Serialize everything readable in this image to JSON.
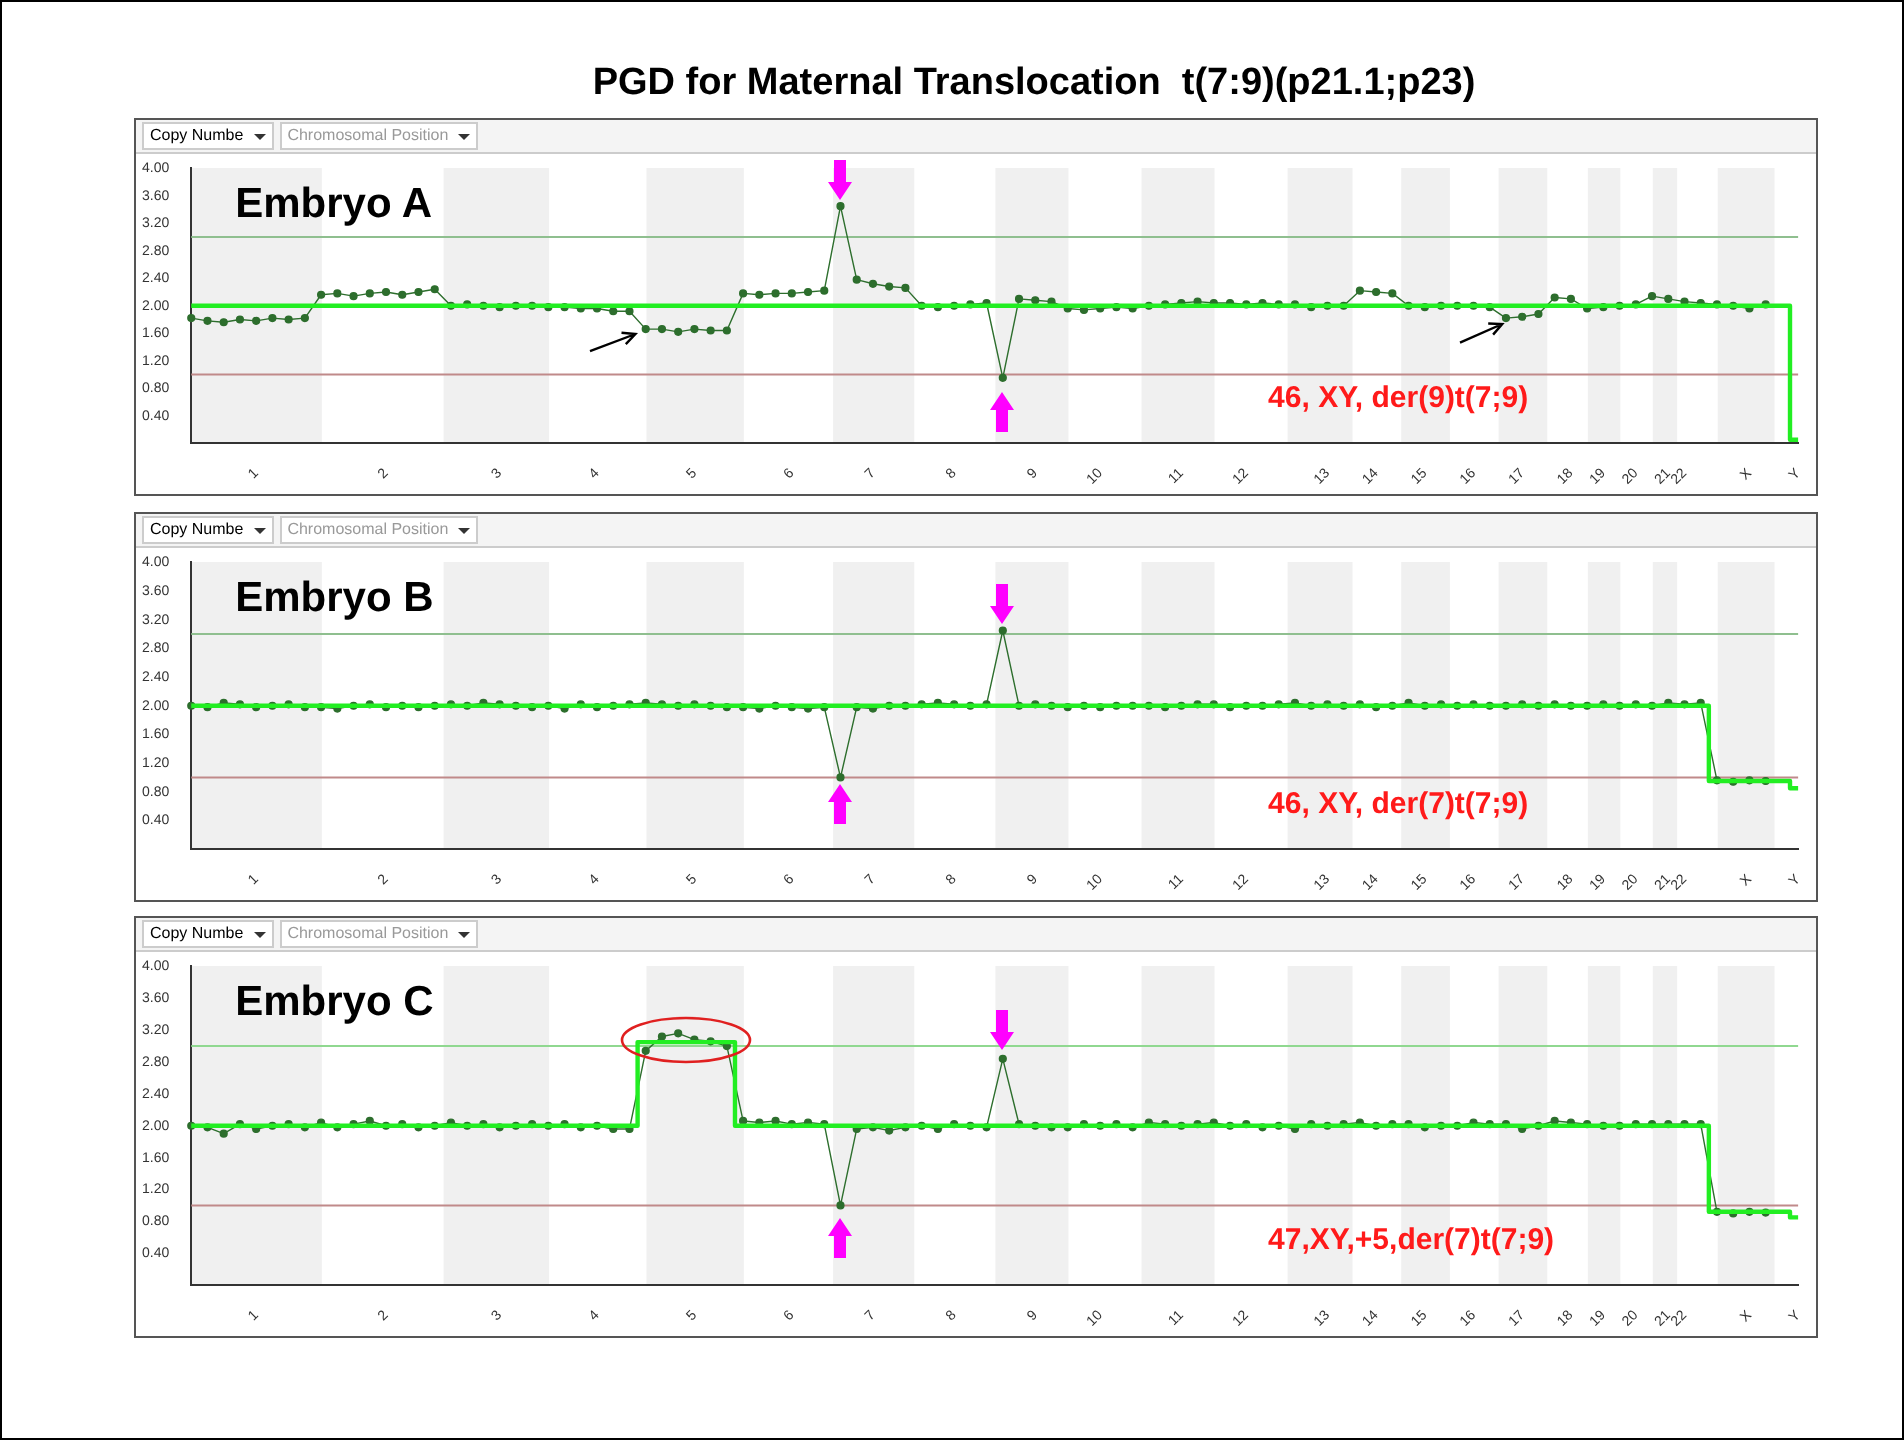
{
  "chart_data": [
    {
      "type": "line",
      "title": "PGD for Maternal Translocation  t(7:9)(p21.1;p23)",
      "subtitle": "Embryo A",
      "annotations": [
        "Copy Numbe",
        "Chromosomal Position",
        "46, XY, der(9)t(7;9)"
      ],
      "categories": [
        null,
        null,
        null,
        null,
        "1",
        null,
        null,
        null,
        null,
        null,
        null,
        null,
        "2",
        null,
        null,
        null,
        null,
        null,
        null,
        "3",
        null,
        null,
        null,
        null,
        null,
        "4",
        null,
        null,
        null,
        null,
        null,
        "5",
        null,
        null,
        null,
        null,
        null,
        "6",
        null,
        null,
        null,
        null,
        "7",
        null,
        null,
        null,
        null,
        "8",
        null,
        null,
        null,
        null,
        "9",
        null,
        null,
        null,
        "10",
        null,
        null,
        null,
        null,
        "11",
        null,
        null,
        null,
        "12",
        null,
        null,
        null,
        null,
        "13",
        null,
        null,
        "14",
        null,
        null,
        "15",
        null,
        null,
        "16",
        null,
        null,
        "17",
        null,
        null,
        "18",
        null,
        "19",
        null,
        "20",
        null,
        "21",
        "22",
        null,
        null,
        null,
        "X",
        null,
        null,
        "Y"
      ],
      "ylim": [
        0,
        4
      ],
      "yticks": [
        {
          "value": 0.4,
          "label": "0.40"
        },
        {
          "value": 0.8,
          "label": "0.80"
        },
        {
          "value": 1.2,
          "label": "1.20"
        },
        {
          "value": 1.6,
          "label": "1.60"
        },
        {
          "value": 2.0,
          "label": "2.00"
        },
        {
          "value": 2.4,
          "label": "2.40"
        },
        {
          "value": 2.8,
          "label": "2.80"
        },
        {
          "value": 3.2,
          "label": "3.20"
        },
        {
          "value": 3.6,
          "label": "3.60"
        },
        {
          "value": 4.0,
          "label": "4.00"
        }
      ],
      "grid": false,
      "legend": false,
      "ref_lines": [
        {
          "axis": "y",
          "value": 3.0,
          "color": "#8fbf8f"
        },
        {
          "axis": "y",
          "value": 1.0,
          "color": "#c08a8a"
        }
      ],
      "series": [
        {
          "type": "line",
          "color": "#2d6e2d",
          "marker": "circle",
          "values": [
            1.82,
            1.78,
            1.76,
            1.8,
            1.78,
            1.82,
            1.8,
            1.82,
            2.16,
            2.18,
            2.14,
            2.18,
            2.2,
            2.16,
            2.2,
            2.24,
            2.0,
            2.02,
            2.0,
            1.98,
            2.0,
            2.0,
            1.98,
            1.98,
            1.96,
            1.96,
            1.92,
            1.92,
            1.66,
            1.66,
            1.62,
            1.66,
            1.64,
            1.64,
            2.18,
            2.16,
            2.18,
            2.18,
            2.2,
            2.22,
            3.45,
            2.38,
            2.32,
            2.28,
            2.26,
            2.0,
            1.98,
            2.0,
            2.02,
            2.04,
            0.95,
            2.1,
            2.08,
            2.06,
            1.96,
            1.94,
            1.96,
            1.98,
            1.96,
            2.0,
            2.02,
            2.04,
            2.06,
            2.04,
            2.04,
            2.02,
            2.04,
            2.02,
            2.02,
            1.98,
            2.0,
            2.0,
            2.22,
            2.2,
            2.18,
            2.0,
            1.98,
            2.0,
            2.0,
            2.0,
            1.98,
            1.82,
            1.84,
            1.88,
            2.12,
            2.1,
            1.96,
            1.98,
            2.0,
            2.02,
            2.14,
            2.1,
            2.06,
            2.04,
            2.02,
            2.0,
            1.96,
            2.02,
            null,
            null
          ]
        },
        {
          "type": "step",
          "color": "#22ee22",
          "marker": "none",
          "values": [
            2.0,
            2.0,
            2.0,
            2.0,
            2.0,
            2.0,
            2.0,
            2.0,
            2.0,
            2.0,
            2.0,
            2.0,
            2.0,
            2.0,
            2.0,
            2.0,
            2.0,
            2.0,
            2.0,
            2.0,
            2.0,
            2.0,
            2.0,
            2.0,
            2.0,
            2.0,
            2.0,
            2.0,
            2.0,
            2.0,
            2.0,
            2.0,
            2.0,
            2.0,
            2.0,
            2.0,
            2.0,
            2.0,
            2.0,
            2.0,
            2.0,
            2.0,
            2.0,
            2.0,
            2.0,
            2.0,
            2.0,
            2.0,
            2.0,
            2.0,
            2.0,
            2.0,
            2.0,
            2.0,
            2.0,
            2.0,
            2.0,
            2.0,
            2.0,
            2.0,
            2.0,
            2.0,
            2.0,
            2.0,
            2.0,
            2.0,
            2.0,
            2.0,
            2.0,
            2.0,
            2.0,
            2.0,
            2.0,
            2.0,
            2.0,
            2.0,
            2.0,
            2.0,
            2.0,
            2.0,
            2.0,
            2.0,
            2.0,
            2.0,
            2.0,
            2.0,
            2.0,
            2.0,
            2.0,
            2.0,
            2.0,
            2.0,
            2.0,
            2.0,
            2.0,
            2.0,
            2.0,
            2.0,
            2.0,
            0.05
          ]
        }
      ]
    },
    {
      "type": "line",
      "subtitle": "Embryo B",
      "annotations": [
        "Copy Numbe",
        "Chromosomal Position",
        "46, XY, der(7)t(7;9)"
      ],
      "categories": [
        null,
        null,
        null,
        null,
        "1",
        null,
        null,
        null,
        null,
        null,
        null,
        null,
        "2",
        null,
        null,
        null,
        null,
        null,
        null,
        "3",
        null,
        null,
        null,
        null,
        null,
        "4",
        null,
        null,
        null,
        null,
        null,
        "5",
        null,
        null,
        null,
        null,
        null,
        "6",
        null,
        null,
        null,
        null,
        "7",
        null,
        null,
        null,
        null,
        "8",
        null,
        null,
        null,
        null,
        "9",
        null,
        null,
        null,
        "10",
        null,
        null,
        null,
        null,
        "11",
        null,
        null,
        null,
        "12",
        null,
        null,
        null,
        null,
        "13",
        null,
        null,
        "14",
        null,
        null,
        "15",
        null,
        null,
        "16",
        null,
        null,
        "17",
        null,
        null,
        "18",
        null,
        "19",
        null,
        "20",
        null,
        "21",
        "22",
        null,
        null,
        null,
        "X",
        null,
        null,
        "Y"
      ],
      "ylim": [
        0,
        4
      ],
      "yticks": [
        {
          "value": 0.4,
          "label": "0.40"
        },
        {
          "value": 0.8,
          "label": "0.80"
        },
        {
          "value": 1.2,
          "label": "1.20"
        },
        {
          "value": 1.6,
          "label": "1.60"
        },
        {
          "value": 2.0,
          "label": "2.00"
        },
        {
          "value": 2.4,
          "label": "2.40"
        },
        {
          "value": 2.8,
          "label": "2.80"
        },
        {
          "value": 3.2,
          "label": "3.20"
        },
        {
          "value": 3.6,
          "label": "3.60"
        },
        {
          "value": 4.0,
          "label": "4.00"
        }
      ],
      "grid": false,
      "legend": false,
      "ref_lines": [
        {
          "axis": "y",
          "value": 3.0,
          "color": "#8fbf8f"
        },
        {
          "axis": "y",
          "value": 1.0,
          "color": "#c08a8a"
        }
      ],
      "series": [
        {
          "type": "line",
          "color": "#2d6e2d",
          "marker": "circle",
          "values": [
            2.0,
            1.98,
            2.04,
            2.02,
            1.98,
            2.0,
            2.02,
            1.98,
            1.98,
            1.96,
            2.0,
            2.02,
            1.98,
            2.0,
            1.98,
            2.0,
            2.02,
            2.0,
            2.04,
            2.02,
            2.0,
            1.98,
            2.0,
            1.96,
            2.02,
            1.98,
            2.0,
            2.02,
            2.04,
            2.02,
            2.0,
            2.02,
            2.0,
            1.98,
            1.98,
            1.96,
            2.0,
            1.98,
            1.96,
            1.98,
            1.0,
            1.98,
            1.96,
            2.0,
            2.0,
            2.02,
            2.04,
            2.02,
            2.0,
            2.02,
            3.05,
            2.0,
            2.02,
            2.0,
            1.98,
            2.0,
            1.98,
            2.0,
            2.0,
            2.0,
            1.98,
            2.0,
            2.02,
            2.02,
            1.98,
            2.0,
            2.0,
            2.02,
            2.04,
            2.0,
            2.02,
            2.0,
            2.02,
            1.98,
            2.0,
            2.04,
            2.0,
            2.02,
            2.0,
            2.02,
            2.0,
            2.0,
            2.02,
            2.0,
            2.02,
            2.0,
            2.0,
            2.02,
            2.0,
            2.02,
            2.0,
            2.04,
            2.02,
            2.04,
            0.96,
            0.94,
            0.96,
            0.95,
            null,
            null
          ]
        },
        {
          "type": "step",
          "color": "#22ee22",
          "marker": "none",
          "values": [
            2.0,
            2.0,
            2.0,
            2.0,
            2.0,
            2.0,
            2.0,
            2.0,
            2.0,
            2.0,
            2.0,
            2.0,
            2.0,
            2.0,
            2.0,
            2.0,
            2.0,
            2.0,
            2.0,
            2.0,
            2.0,
            2.0,
            2.0,
            2.0,
            2.0,
            2.0,
            2.0,
            2.0,
            2.0,
            2.0,
            2.0,
            2.0,
            2.0,
            2.0,
            2.0,
            2.0,
            2.0,
            2.0,
            2.0,
            2.0,
            2.0,
            2.0,
            2.0,
            2.0,
            2.0,
            2.0,
            2.0,
            2.0,
            2.0,
            2.0,
            2.0,
            2.0,
            2.0,
            2.0,
            2.0,
            2.0,
            2.0,
            2.0,
            2.0,
            2.0,
            2.0,
            2.0,
            2.0,
            2.0,
            2.0,
            2.0,
            2.0,
            2.0,
            2.0,
            2.0,
            2.0,
            2.0,
            2.0,
            2.0,
            2.0,
            2.0,
            2.0,
            2.0,
            2.0,
            2.0,
            2.0,
            2.0,
            2.0,
            2.0,
            2.0,
            2.0,
            2.0,
            2.0,
            2.0,
            2.0,
            2.0,
            2.0,
            2.0,
            2.0,
            0.95,
            0.95,
            0.95,
            0.95,
            0.95,
            0.85
          ]
        }
      ]
    },
    {
      "type": "line",
      "subtitle": "Embryo C",
      "annotations": [
        "Copy Numbe",
        "Chromosomal Position",
        "47,XY,+5,der(7)t(7;9)"
      ],
      "categories": [
        null,
        null,
        null,
        null,
        "1",
        null,
        null,
        null,
        null,
        null,
        null,
        null,
        "2",
        null,
        null,
        null,
        null,
        null,
        null,
        "3",
        null,
        null,
        null,
        null,
        null,
        "4",
        null,
        null,
        null,
        null,
        null,
        "5",
        null,
        null,
        null,
        null,
        null,
        "6",
        null,
        null,
        null,
        null,
        "7",
        null,
        null,
        null,
        null,
        "8",
        null,
        null,
        null,
        null,
        "9",
        null,
        null,
        null,
        "10",
        null,
        null,
        null,
        null,
        "11",
        null,
        null,
        null,
        "12",
        null,
        null,
        null,
        null,
        "13",
        null,
        null,
        "14",
        null,
        null,
        "15",
        null,
        null,
        "16",
        null,
        null,
        "17",
        null,
        null,
        "18",
        null,
        "19",
        null,
        "20",
        null,
        "21",
        "22",
        null,
        null,
        null,
        "X",
        null,
        null,
        "Y"
      ],
      "ylim": [
        0,
        4
      ],
      "yticks": [
        {
          "value": 0.4,
          "label": "0.40"
        },
        {
          "value": 0.8,
          "label": "0.80"
        },
        {
          "value": 1.2,
          "label": "1.20"
        },
        {
          "value": 1.6,
          "label": "1.60"
        },
        {
          "value": 2.0,
          "label": "2.00"
        },
        {
          "value": 2.4,
          "label": "2.40"
        },
        {
          "value": 2.8,
          "label": "2.80"
        },
        {
          "value": 3.2,
          "label": "3.20"
        },
        {
          "value": 3.6,
          "label": "3.60"
        },
        {
          "value": 4.0,
          "label": "4.00"
        }
      ],
      "grid": false,
      "legend": false,
      "ref_lines": [
        {
          "axis": "y",
          "value": 3.0,
          "color": "#90d890"
        },
        {
          "axis": "y",
          "value": 1.0,
          "color": "#c08a8a"
        }
      ],
      "series": [
        {
          "type": "line",
          "color": "#2d6e2d",
          "marker": "circle",
          "values": [
            2.0,
            1.98,
            1.9,
            2.02,
            1.96,
            2.0,
            2.02,
            1.98,
            2.04,
            1.98,
            2.02,
            2.06,
            2.0,
            2.02,
            1.98,
            2.0,
            2.04,
            2.0,
            2.02,
            1.98,
            2.0,
            2.02,
            2.0,
            2.02,
            1.98,
            2.0,
            1.96,
            1.96,
            2.94,
            3.12,
            3.16,
            3.08,
            3.06,
            3.0,
            2.06,
            2.04,
            2.06,
            2.02,
            2.04,
            2.02,
            1.0,
            1.96,
            1.98,
            1.94,
            1.98,
            2.0,
            1.96,
            2.02,
            2.0,
            1.98,
            2.84,
            2.02,
            2.0,
            1.98,
            1.98,
            2.02,
            2.0,
            2.02,
            1.98,
            2.04,
            2.02,
            2.0,
            2.02,
            2.04,
            2.0,
            2.02,
            1.98,
            2.0,
            1.96,
            2.02,
            2.0,
            2.02,
            2.04,
            2.0,
            2.02,
            2.02,
            1.98,
            2.0,
            2.0,
            2.04,
            2.02,
            2.02,
            1.96,
            2.0,
            2.06,
            2.04,
            2.02,
            2.0,
            2.0,
            2.02,
            2.02,
            2.02,
            2.02,
            2.02,
            0.92,
            0.9,
            0.92,
            0.91,
            null,
            null
          ]
        },
        {
          "type": "step",
          "color": "#22ee22",
          "marker": "none",
          "values": [
            2.0,
            2.0,
            2.0,
            2.0,
            2.0,
            2.0,
            2.0,
            2.0,
            2.0,
            2.0,
            2.0,
            2.0,
            2.0,
            2.0,
            2.0,
            2.0,
            2.0,
            2.0,
            2.0,
            2.0,
            2.0,
            2.0,
            2.0,
            2.0,
            2.0,
            2.0,
            2.0,
            2.0,
            3.05,
            3.05,
            3.05,
            3.05,
            3.05,
            3.05,
            2.0,
            2.0,
            2.0,
            2.0,
            2.0,
            2.0,
            2.0,
            2.0,
            2.0,
            2.0,
            2.0,
            2.0,
            2.0,
            2.0,
            2.0,
            2.0,
            2.0,
            2.0,
            2.0,
            2.0,
            2.0,
            2.0,
            2.0,
            2.0,
            2.0,
            2.0,
            2.0,
            2.0,
            2.0,
            2.0,
            2.0,
            2.0,
            2.0,
            2.0,
            2.0,
            2.0,
            2.0,
            2.0,
            2.0,
            2.0,
            2.0,
            2.0,
            2.0,
            2.0,
            2.0,
            2.0,
            2.0,
            2.0,
            2.0,
            2.0,
            2.0,
            2.0,
            2.0,
            2.0,
            2.0,
            2.0,
            2.0,
            2.0,
            2.0,
            2.0,
            0.92,
            0.92,
            0.92,
            0.92,
            0.92,
            0.85
          ]
        }
      ]
    }
  ]
}
